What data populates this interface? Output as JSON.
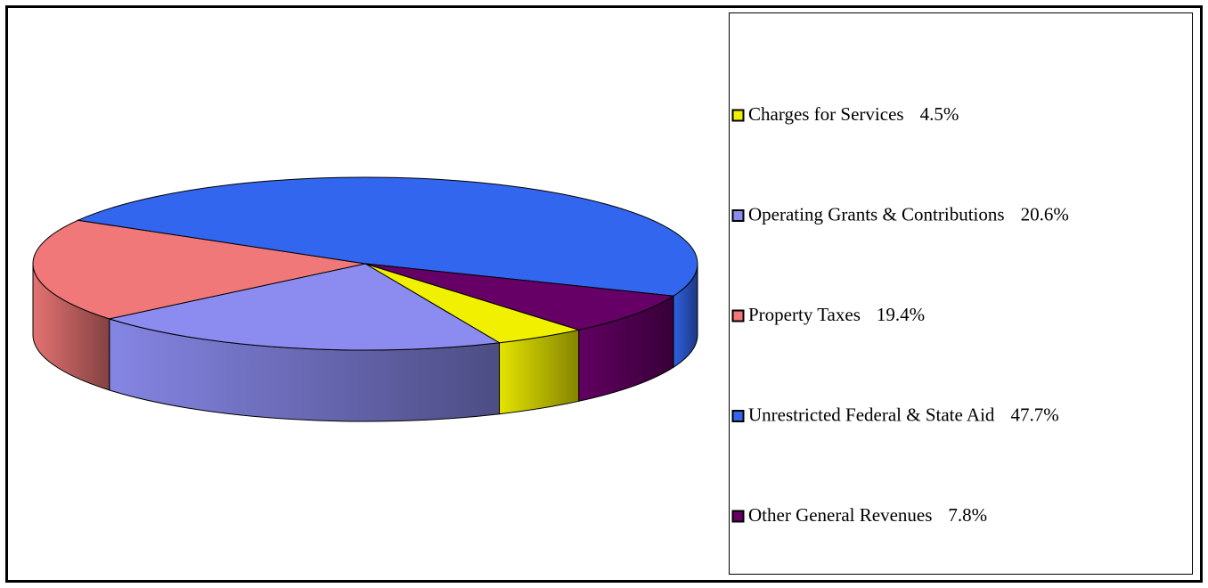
{
  "chart_data": {
    "type": "pie",
    "categories": [
      "Charges for Services",
      "Operating Grants & Contributions",
      "Property Taxes",
      "Unrestricted Federal & State Aid",
      "Other General Revenues"
    ],
    "values": [
      4.5,
      20.6,
      19.4,
      47.7,
      7.8
    ],
    "value_labels": [
      "4.5%",
      "20.6%",
      "19.4%",
      "47.7%",
      "7.8%"
    ],
    "colors": [
      "#f0f000",
      "#8c8cf0",
      "#f07878",
      "#3366ee",
      "#660066"
    ],
    "legend": "right"
  }
}
